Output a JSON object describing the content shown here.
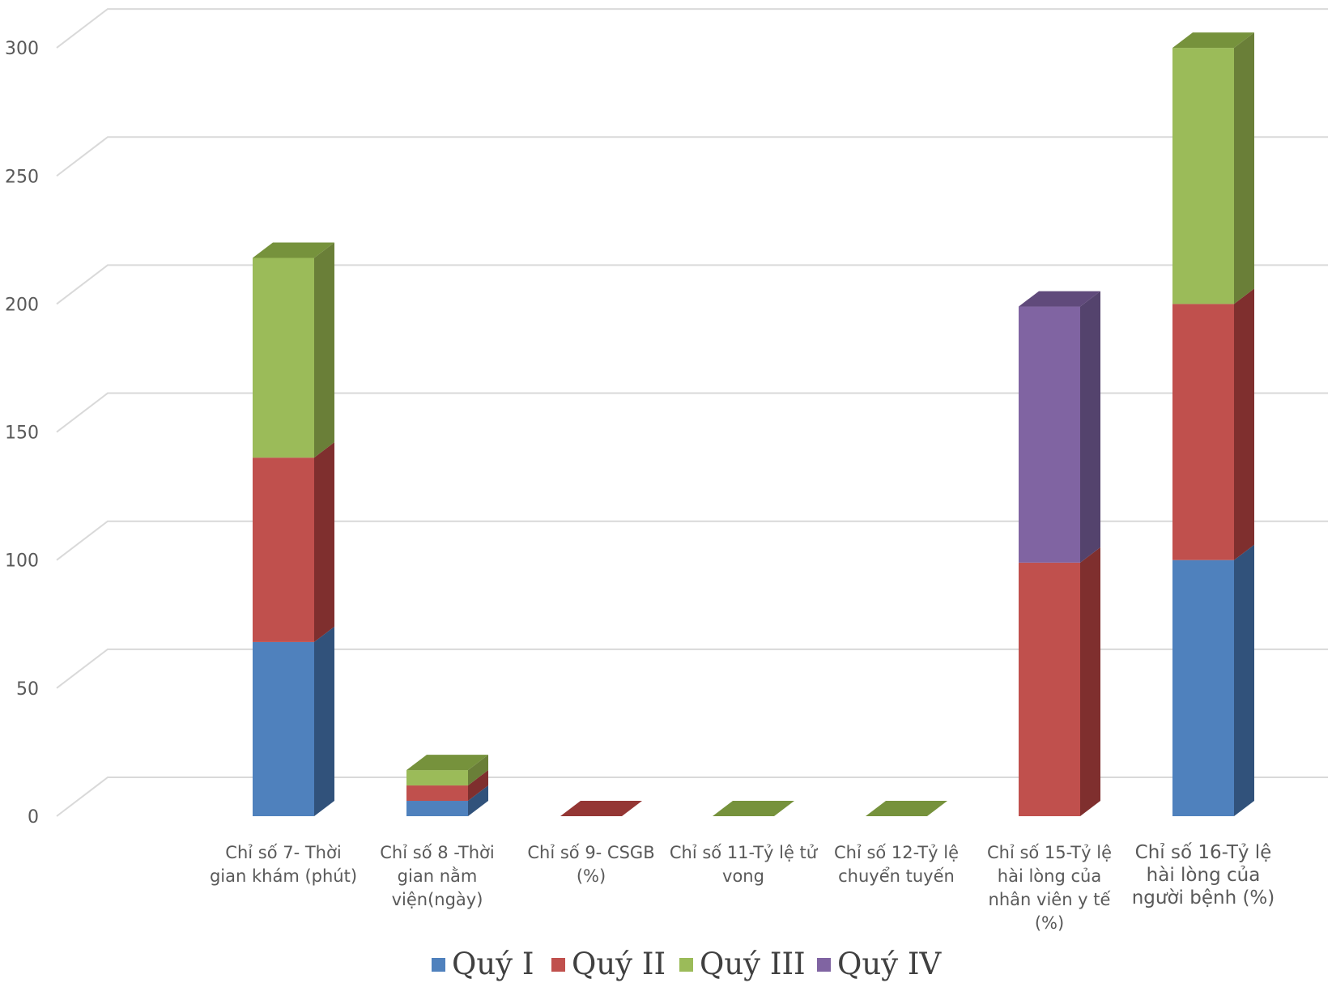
{
  "chart_data": {
    "type": "bar",
    "stacked": true,
    "style": "3d-column",
    "grid": true,
    "legend_position": "bottom",
    "ylim": [
      0,
      300
    ],
    "y_ticks": [
      "0",
      "50",
      "100",
      "150",
      "200",
      "250",
      "300"
    ],
    "categories": [
      [
        "Chỉ số 7- Thời",
        "gian khám (phút)"
      ],
      [
        "Chỉ số 8 -Thời",
        "gian nằm",
        "viện(ngày)"
      ],
      [
        "Chỉ số 9- CSGB",
        "(%)"
      ],
      [
        "Chỉ số 11-Tỷ lệ tử",
        "vong"
      ],
      [
        "Chỉ số 12-Tỷ lệ",
        "chuyển tuyến"
      ],
      [
        "Chỉ số 15-Tỷ lệ",
        "hài lòng của",
        "nhân viên y tế",
        "(%)"
      ],
      [
        "Chỉ số 16-Tỷ lệ",
        "hài lòng của",
        "người bệnh (%)"
      ]
    ],
    "series": [
      {
        "name": "Quý I",
        "color": "#4F81BD",
        "side": "#31527B",
        "top": "#3A6596",
        "values": [
          68,
          6,
          0,
          0,
          0,
          0,
          100
        ]
      },
      {
        "name": "Quý II",
        "color": "#C0504D",
        "side": "#7F2F2E",
        "top": "#943634",
        "values": [
          72,
          6,
          0,
          0,
          0,
          99,
          100
        ]
      },
      {
        "name": "Quý III",
        "color": "#9BBB59",
        "side": "#6A7F38",
        "top": "#76923C",
        "values": [
          78,
          6,
          0,
          0,
          0,
          0,
          100
        ]
      },
      {
        "name": "Quý IV",
        "color": "#8064A2",
        "side": "#54436D",
        "top": "#604A7B",
        "values": [
          0,
          0,
          0,
          0,
          0,
          100,
          0
        ]
      }
    ]
  }
}
